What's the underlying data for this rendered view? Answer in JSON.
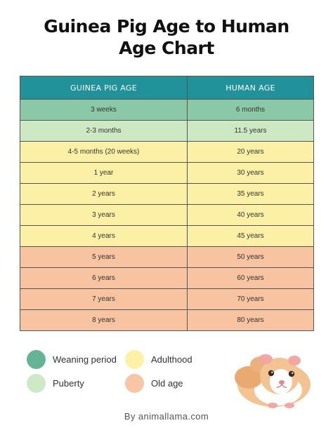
{
  "title": {
    "line1": "Guinea Pig Age to Human",
    "line2": "Age Chart"
  },
  "table": {
    "headers": [
      "GUINEA PIG AGE",
      "HUMAN AGE"
    ],
    "rows": [
      {
        "guinea": "3 weeks",
        "human": "6 months",
        "stage": "weaning"
      },
      {
        "guinea": "2-3 months",
        "human": "11.5 years",
        "stage": "puberty"
      },
      {
        "guinea": "4-5 months (20 weeks)",
        "human": "20 years",
        "stage": "adulthood"
      },
      {
        "guinea": "1 year",
        "human": "30 years",
        "stage": "adulthood"
      },
      {
        "guinea": "2 years",
        "human": "35 years",
        "stage": "adulthood"
      },
      {
        "guinea": "3 years",
        "human": "40 years",
        "stage": "adulthood"
      },
      {
        "guinea": "4 years",
        "human": "45 years",
        "stage": "adulthood"
      },
      {
        "guinea": "5 years",
        "human": "50 years",
        "stage": "old_age"
      },
      {
        "guinea": "6 years",
        "human": "60 years",
        "stage": "old_age"
      },
      {
        "guinea": "7 years",
        "human": "70 years",
        "stage": "old_age"
      },
      {
        "guinea": "8 years",
        "human": "80 years",
        "stage": "old_age"
      }
    ]
  },
  "legend": [
    {
      "key": "weaning",
      "label": "Weaning period"
    },
    {
      "key": "adulthood",
      "label": "Adulthood"
    },
    {
      "key": "puberty",
      "label": "Puberty"
    },
    {
      "key": "old_age",
      "label": "Old age"
    }
  ],
  "colors": {
    "header": "#21919a",
    "weaning": "#8bc8a7",
    "puberty": "#cce9c4",
    "adulthood": "#fbf0a6",
    "old_age": "#f7c3a0",
    "weaning_swatch": "#63b596",
    "puberty_swatch": "#cde9c6",
    "adulthood_swatch": "#fdf1a8",
    "old_age_swatch": "#f8c6a4"
  },
  "footer": {
    "credit": "By animallama.com"
  }
}
